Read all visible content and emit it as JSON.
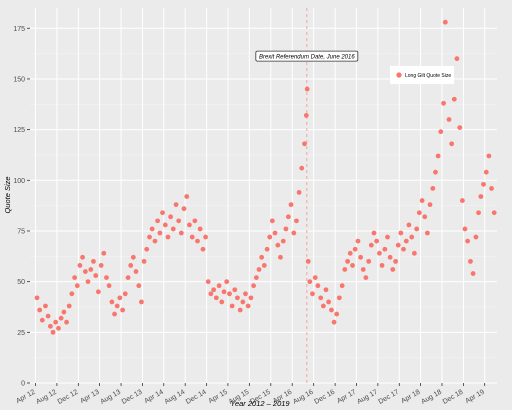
{
  "chart_data": {
    "type": "scatter",
    "xlabel": "Year 2012 – 2019",
    "ylabel": "Quote Size",
    "ylim": [
      0,
      185
    ],
    "yticks": [
      0,
      25,
      50,
      75,
      100,
      125,
      150,
      175
    ],
    "xlim": [
      "2012-03-01",
      "2019-06-10"
    ],
    "xticks": [
      "2012-04-01",
      "2012-08-01",
      "2012-12-01",
      "2013-04-01",
      "2013-08-01",
      "2013-12-01",
      "2014-04-01",
      "2014-08-01",
      "2014-12-01",
      "2015-04-01",
      "2015-08-01",
      "2015-12-01",
      "2016-04-01",
      "2016-08-01",
      "2016-12-01",
      "2017-04-01",
      "2017-08-01",
      "2017-12-01",
      "2018-04-01",
      "2018-08-01",
      "2018-12-01",
      "2019-04-01"
    ],
    "xtick_labels": [
      "Apr 12",
      "Aug 12",
      "Dec 12",
      "Apr 13",
      "Aug 13",
      "Dec 13",
      "Apr 14",
      "Aug 14",
      "Dec 14",
      "Apr 15",
      "Aug 15",
      "Dec 15",
      "Apr 16",
      "Aug 16",
      "Dec 16",
      "Apr 17",
      "Aug 17",
      "Dec 17",
      "Apr 18",
      "Aug 18",
      "Dec 18",
      "Apr 19"
    ],
    "grid": true,
    "legend_position": "top-right",
    "series": [
      {
        "name": "Long Gilt Quote Size",
        "color": "#f8766d",
        "points": [
          [
            "2012-04-10",
            42
          ],
          [
            "2012-04-25",
            36
          ],
          [
            "2012-05-10",
            31
          ],
          [
            "2012-05-28",
            38
          ],
          [
            "2012-06-12",
            33
          ],
          [
            "2012-06-25",
            28
          ],
          [
            "2012-07-10",
            25
          ],
          [
            "2012-07-25",
            30
          ],
          [
            "2012-08-10",
            27
          ],
          [
            "2012-08-25",
            32
          ],
          [
            "2012-09-10",
            35
          ],
          [
            "2012-09-25",
            30
          ],
          [
            "2012-10-10",
            38
          ],
          [
            "2012-10-25",
            44
          ],
          [
            "2012-11-10",
            52
          ],
          [
            "2012-11-25",
            48
          ],
          [
            "2012-12-10",
            58
          ],
          [
            "2012-12-25",
            62
          ],
          [
            "2013-01-10",
            55
          ],
          [
            "2013-01-25",
            50
          ],
          [
            "2013-02-10",
            56
          ],
          [
            "2013-02-25",
            60
          ],
          [
            "2013-03-10",
            53
          ],
          [
            "2013-03-25",
            45
          ],
          [
            "2013-04-10",
            58
          ],
          [
            "2013-04-25",
            64
          ],
          [
            "2013-05-10",
            52
          ],
          [
            "2013-05-25",
            48
          ],
          [
            "2013-06-10",
            40
          ],
          [
            "2013-06-25",
            34
          ],
          [
            "2013-07-10",
            38
          ],
          [
            "2013-07-25",
            42
          ],
          [
            "2013-08-10",
            36
          ],
          [
            "2013-08-25",
            44
          ],
          [
            "2013-09-10",
            52
          ],
          [
            "2013-09-25",
            58
          ],
          [
            "2013-10-10",
            62
          ],
          [
            "2013-10-25",
            55
          ],
          [
            "2013-11-10",
            48
          ],
          [
            "2013-11-25",
            40
          ],
          [
            "2013-12-10",
            60
          ],
          [
            "2013-12-25",
            66
          ],
          [
            "2014-01-10",
            72
          ],
          [
            "2014-01-25",
            76
          ],
          [
            "2014-02-10",
            70
          ],
          [
            "2014-02-25",
            80
          ],
          [
            "2014-03-10",
            74
          ],
          [
            "2014-03-25",
            84
          ],
          [
            "2014-04-10",
            78
          ],
          [
            "2014-04-25",
            72
          ],
          [
            "2014-05-10",
            82
          ],
          [
            "2014-05-25",
            76
          ],
          [
            "2014-06-10",
            88
          ],
          [
            "2014-06-25",
            80
          ],
          [
            "2014-07-10",
            74
          ],
          [
            "2014-07-25",
            86
          ],
          [
            "2014-08-10",
            92
          ],
          [
            "2014-08-25",
            78
          ],
          [
            "2014-09-10",
            72
          ],
          [
            "2014-09-25",
            80
          ],
          [
            "2014-10-10",
            70
          ],
          [
            "2014-10-25",
            76
          ],
          [
            "2014-11-10",
            66
          ],
          [
            "2014-11-25",
            72
          ],
          [
            "2014-12-10",
            50
          ],
          [
            "2014-12-25",
            44
          ],
          [
            "2015-01-10",
            46
          ],
          [
            "2015-01-25",
            42
          ],
          [
            "2015-02-10",
            48
          ],
          [
            "2015-02-25",
            40
          ],
          [
            "2015-03-10",
            45
          ],
          [
            "2015-03-25",
            50
          ],
          [
            "2015-04-10",
            44
          ],
          [
            "2015-04-25",
            38
          ],
          [
            "2015-05-10",
            46
          ],
          [
            "2015-05-25",
            42
          ],
          [
            "2015-06-10",
            36
          ],
          [
            "2015-06-25",
            40
          ],
          [
            "2015-07-10",
            44
          ],
          [
            "2015-07-25",
            38
          ],
          [
            "2015-08-10",
            42
          ],
          [
            "2015-08-25",
            48
          ],
          [
            "2015-09-10",
            52
          ],
          [
            "2015-09-25",
            56
          ],
          [
            "2015-10-10",
            62
          ],
          [
            "2015-10-25",
            58
          ],
          [
            "2015-11-10",
            66
          ],
          [
            "2015-11-25",
            72
          ],
          [
            "2015-12-10",
            80
          ],
          [
            "2015-12-25",
            74
          ],
          [
            "2016-01-10",
            68
          ],
          [
            "2016-01-25",
            62
          ],
          [
            "2016-02-10",
            70
          ],
          [
            "2016-02-25",
            76
          ],
          [
            "2016-03-10",
            82
          ],
          [
            "2016-03-25",
            88
          ],
          [
            "2016-04-10",
            74
          ],
          [
            "2016-04-25",
            80
          ],
          [
            "2016-05-10",
            94
          ],
          [
            "2016-05-25",
            106
          ],
          [
            "2016-06-10",
            118
          ],
          [
            "2016-06-20",
            132
          ],
          [
            "2016-06-25",
            145
          ],
          [
            "2016-07-01",
            60
          ],
          [
            "2016-07-10",
            50
          ],
          [
            "2016-07-25",
            44
          ],
          [
            "2016-08-10",
            52
          ],
          [
            "2016-08-25",
            48
          ],
          [
            "2016-09-10",
            42
          ],
          [
            "2016-09-25",
            38
          ],
          [
            "2016-10-10",
            46
          ],
          [
            "2016-10-25",
            40
          ],
          [
            "2016-11-10",
            36
          ],
          [
            "2016-11-25",
            30
          ],
          [
            "2016-12-10",
            34
          ],
          [
            "2016-12-25",
            42
          ],
          [
            "2017-01-10",
            48
          ],
          [
            "2017-01-25",
            56
          ],
          [
            "2017-02-10",
            60
          ],
          [
            "2017-02-25",
            64
          ],
          [
            "2017-03-10",
            58
          ],
          [
            "2017-03-25",
            66
          ],
          [
            "2017-04-10",
            70
          ],
          [
            "2017-04-25",
            62
          ],
          [
            "2017-05-10",
            56
          ],
          [
            "2017-05-25",
            52
          ],
          [
            "2017-06-10",
            60
          ],
          [
            "2017-06-25",
            68
          ],
          [
            "2017-07-10",
            74
          ],
          [
            "2017-07-25",
            70
          ],
          [
            "2017-08-10",
            64
          ],
          [
            "2017-08-25",
            58
          ],
          [
            "2017-09-10",
            66
          ],
          [
            "2017-09-25",
            72
          ],
          [
            "2017-10-10",
            62
          ],
          [
            "2017-10-25",
            56
          ],
          [
            "2017-11-10",
            60
          ],
          [
            "2017-11-25",
            68
          ],
          [
            "2017-12-10",
            74
          ],
          [
            "2017-12-25",
            66
          ],
          [
            "2018-01-10",
            70
          ],
          [
            "2018-01-25",
            78
          ],
          [
            "2018-02-10",
            72
          ],
          [
            "2018-02-25",
            64
          ],
          [
            "2018-03-10",
            76
          ],
          [
            "2018-03-25",
            84
          ],
          [
            "2018-04-10",
            90
          ],
          [
            "2018-04-25",
            82
          ],
          [
            "2018-05-10",
            74
          ],
          [
            "2018-05-25",
            88
          ],
          [
            "2018-06-10",
            96
          ],
          [
            "2018-06-25",
            104
          ],
          [
            "2018-07-10",
            112
          ],
          [
            "2018-07-25",
            124
          ],
          [
            "2018-08-10",
            138
          ],
          [
            "2018-08-20",
            178
          ],
          [
            "2018-08-25",
            150
          ],
          [
            "2018-09-10",
            130
          ],
          [
            "2018-09-25",
            118
          ],
          [
            "2018-10-10",
            140
          ],
          [
            "2018-10-25",
            160
          ],
          [
            "2018-11-10",
            126
          ],
          [
            "2018-11-25",
            90
          ],
          [
            "2018-12-10",
            76
          ],
          [
            "2018-12-25",
            70
          ],
          [
            "2019-01-10",
            60
          ],
          [
            "2019-01-25",
            54
          ],
          [
            "2019-02-10",
            72
          ],
          [
            "2019-02-25",
            84
          ],
          [
            "2019-03-10",
            92
          ],
          [
            "2019-03-25",
            98
          ],
          [
            "2019-04-10",
            104
          ],
          [
            "2019-04-25",
            112
          ],
          [
            "2019-05-10",
            96
          ],
          [
            "2019-05-25",
            84
          ]
        ]
      }
    ],
    "reference_line": {
      "date": "2016-06-23",
      "color": "#f4a3a3",
      "style": "dashed"
    },
    "annotation": {
      "text": "Brexit Referendum Date, June 2016",
      "x": "2016-06-23",
      "y": 161
    }
  }
}
